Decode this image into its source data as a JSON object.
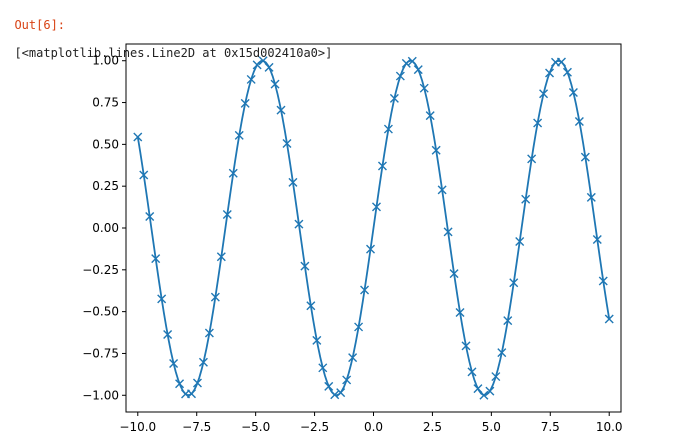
{
  "cell": {
    "prompt": "Out[6]:",
    "text": "[<matplotlib.lines.Line2D at 0x15d002410a0>]"
  },
  "colors": {
    "line": "#1f77b4",
    "prompt": "#d84315"
  },
  "chart_data": {
    "type": "line",
    "title": "",
    "xlabel": "",
    "ylabel": "",
    "xlim": [
      -10.5,
      10.5
    ],
    "ylim": [
      -1.1,
      1.1
    ],
    "x_ticks": [
      -10.0,
      -7.5,
      -5.0,
      -2.5,
      0.0,
      2.5,
      5.0,
      7.5,
      10.0
    ],
    "x_tick_labels": [
      "−10.0",
      "−7.5",
      "−5.0",
      "−2.5",
      "0.0",
      "2.5",
      "5.0",
      "7.5",
      "10.0"
    ],
    "y_ticks": [
      -1.0,
      -0.75,
      -0.5,
      -0.25,
      0.0,
      0.25,
      0.5,
      0.75,
      1.0
    ],
    "y_tick_labels": [
      "−1.00",
      "−0.75",
      "−0.50",
      "−0.25",
      "0.00",
      "0.25",
      "0.50",
      "0.75",
      "1.00"
    ],
    "grid": false,
    "legend": null,
    "series": [
      {
        "function": "sin(x)",
        "x_start": -10,
        "x_end": 10,
        "line_points": 200,
        "marker_points": 80,
        "marker": "x",
        "color": "#1f77b4"
      }
    ]
  }
}
